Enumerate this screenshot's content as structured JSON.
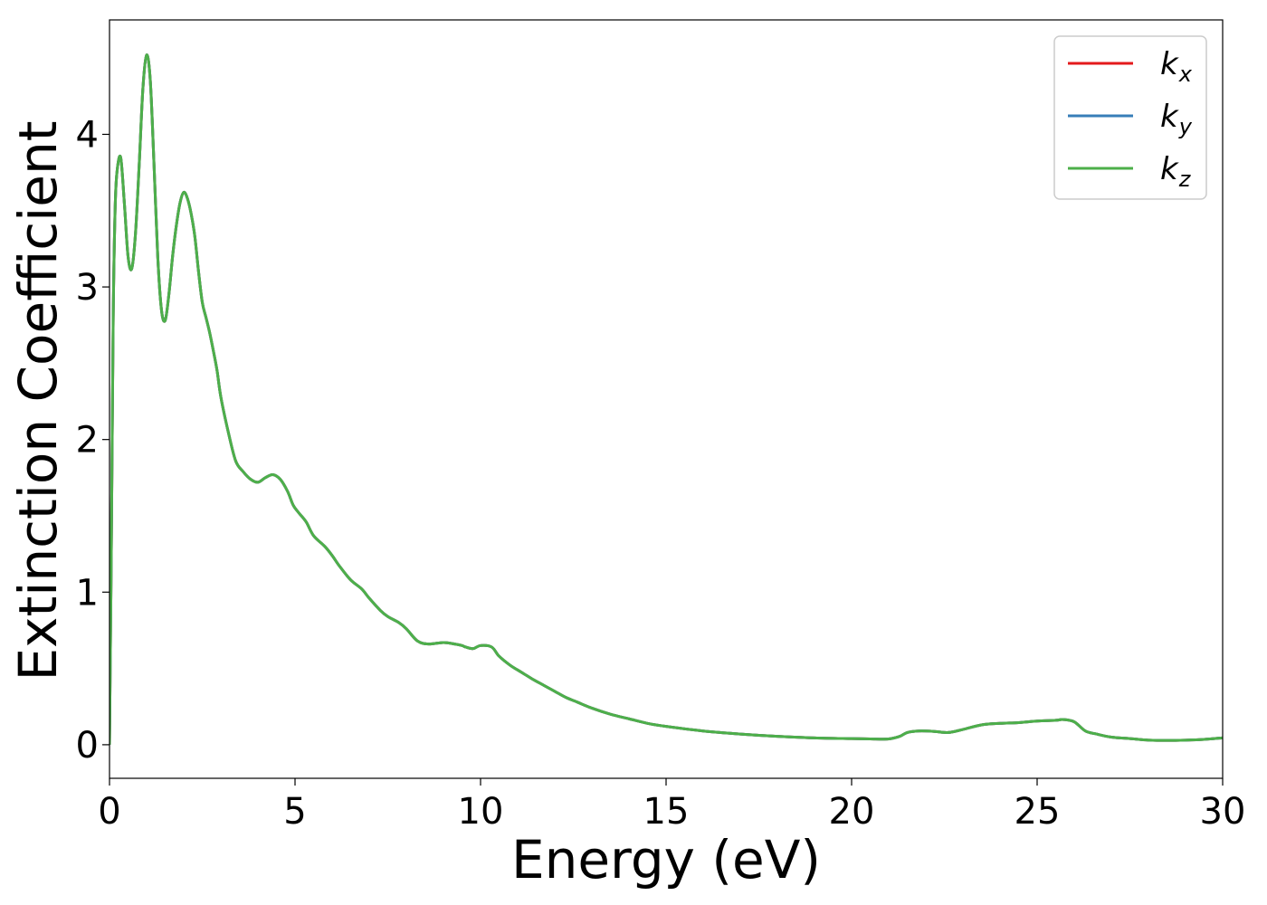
{
  "chart_data": {
    "type": "line",
    "title": "",
    "xlabel": "Energy (eV)",
    "ylabel": "Extinction Coefficient",
    "xlim": [
      0,
      30
    ],
    "ylim": [
      -0.22,
      4.75
    ],
    "xticks": [
      0,
      5,
      10,
      15,
      20,
      25,
      30
    ],
    "yticks": [
      0,
      1,
      2,
      3,
      4
    ],
    "grid": false,
    "legend_position": "top-right",
    "series": [
      {
        "name": "k",
        "subscript": "x",
        "color": "#e41a1c"
      },
      {
        "name": "k",
        "subscript": "y",
        "color": "#377eb8"
      },
      {
        "name": "k",
        "subscript": "z",
        "color": "#4daf4a"
      }
    ],
    "x": [
      0,
      0.05,
      0.1,
      0.15,
      0.2,
      0.3,
      0.4,
      0.5,
      0.6,
      0.7,
      0.8,
      0.9,
      1.0,
      1.1,
      1.2,
      1.3,
      1.4,
      1.5,
      1.6,
      1.7,
      1.8,
      1.9,
      2.0,
      2.1,
      2.2,
      2.3,
      2.4,
      2.5,
      2.6,
      2.7,
      2.8,
      2.9,
      3.0,
      3.2,
      3.4,
      3.6,
      3.8,
      4.0,
      4.2,
      4.4,
      4.6,
      4.8,
      4.95,
      5.1,
      5.3,
      5.5,
      5.8,
      6.0,
      6.2,
      6.5,
      6.8,
      7.0,
      7.3,
      7.5,
      7.8,
      8.0,
      8.3,
      8.6,
      9.0,
      9.3,
      9.5,
      9.6,
      9.8,
      10.0,
      10.3,
      10.5,
      10.8,
      11.0,
      11.2,
      11.4,
      11.7,
      12.0,
      12.3,
      12.6,
      13.0,
      13.5,
      14.0,
      14.5,
      15.0,
      16.0,
      17.0,
      18.0,
      19.0,
      20.0,
      20.5,
      21.0,
      21.3,
      21.5,
      21.8,
      22.2,
      22.6,
      23.0,
      23.5,
      24.0,
      24.5,
      25.0,
      25.5,
      25.7,
      26.0,
      26.3,
      26.6,
      27.0,
      27.5,
      28.0,
      28.5,
      29.0,
      29.5,
      30.0
    ],
    "values": [
      0.0,
      1.3,
      2.8,
      3.5,
      3.75,
      3.85,
      3.55,
      3.2,
      3.12,
      3.35,
      3.8,
      4.3,
      4.52,
      4.35,
      3.8,
      3.2,
      2.85,
      2.78,
      2.95,
      3.2,
      3.4,
      3.55,
      3.62,
      3.58,
      3.48,
      3.33,
      3.1,
      2.9,
      2.8,
      2.7,
      2.58,
      2.45,
      2.28,
      2.05,
      1.86,
      1.79,
      1.74,
      1.72,
      1.75,
      1.77,
      1.74,
      1.66,
      1.57,
      1.52,
      1.46,
      1.37,
      1.3,
      1.24,
      1.17,
      1.08,
      1.02,
      0.96,
      0.88,
      0.84,
      0.8,
      0.76,
      0.68,
      0.66,
      0.67,
      0.66,
      0.65,
      0.64,
      0.63,
      0.65,
      0.64,
      0.58,
      0.52,
      0.49,
      0.46,
      0.43,
      0.39,
      0.35,
      0.31,
      0.28,
      0.24,
      0.2,
      0.17,
      0.14,
      0.12,
      0.09,
      0.07,
      0.055,
      0.045,
      0.04,
      0.038,
      0.038,
      0.055,
      0.08,
      0.09,
      0.088,
      0.08,
      0.1,
      0.13,
      0.14,
      0.145,
      0.155,
      0.16,
      0.165,
      0.15,
      0.09,
      0.07,
      0.05,
      0.04,
      0.03,
      0.028,
      0.03,
      0.035,
      0.045
    ]
  }
}
